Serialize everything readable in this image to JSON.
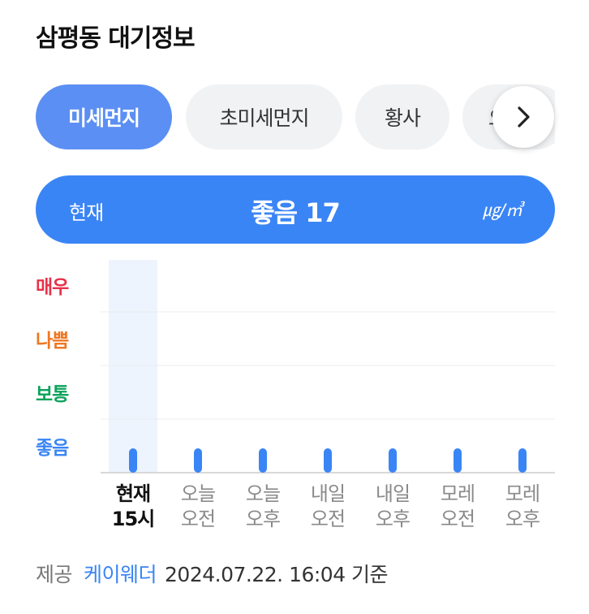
{
  "page": {
    "title": "삼평동 대기정보"
  },
  "tabs": [
    {
      "label": "미세먼지",
      "active": true
    },
    {
      "label": "초미세먼지",
      "active": false
    },
    {
      "label": "황사",
      "active": false
    },
    {
      "label": "오존",
      "active": false
    }
  ],
  "summary": {
    "label": "현재",
    "value_text": "좋음 17",
    "unit": "㎍/㎥"
  },
  "chart_data": {
    "type": "scatter",
    "levels": [
      {
        "label": "매우",
        "color": "#e8314a"
      },
      {
        "label": "나쁨",
        "color": "#ef7622"
      },
      {
        "label": "보통",
        "color": "#0ba35a"
      },
      {
        "label": "좋음",
        "color": "#3a85f5"
      }
    ],
    "categories": [
      {
        "line1": "현재",
        "line2": "15시",
        "current": true
      },
      {
        "line1": "오늘",
        "line2": "오전",
        "current": false
      },
      {
        "line1": "오늘",
        "line2": "오후",
        "current": false
      },
      {
        "line1": "내일",
        "line2": "오전",
        "current": false
      },
      {
        "line1": "내일",
        "line2": "오후",
        "current": false
      },
      {
        "line1": "모레",
        "line2": "오전",
        "current": false
      },
      {
        "line1": "모레",
        "line2": "오후",
        "current": false
      }
    ],
    "values": [
      "좋음",
      "좋음",
      "좋음",
      "좋음",
      "좋음",
      "좋음",
      "좋음"
    ],
    "colors": {
      "marker": "#3a85f5",
      "highlight": "#edf4fe",
      "grid": "#ececec",
      "axis": "#cccccc"
    }
  },
  "footer": {
    "provider_label": "제공",
    "provider": "케이웨더",
    "timestamp": "2024.07.22. 16:04 기준"
  }
}
